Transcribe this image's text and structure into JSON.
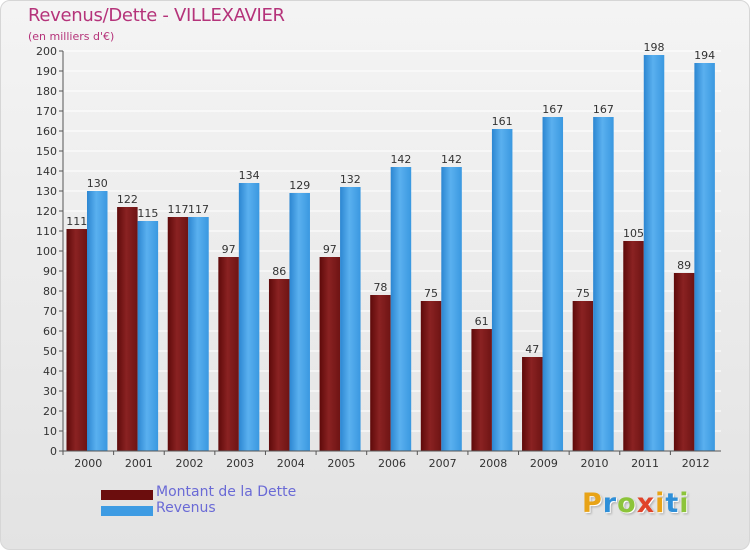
{
  "header": {
    "title": "Revenus/Dette - VILLEXAVIER",
    "subtitle": "(en milliers d'€)"
  },
  "chart_data": {
    "type": "bar",
    "categories": [
      "2000",
      "2001",
      "2002",
      "2003",
      "2004",
      "2005",
      "2006",
      "2007",
      "2008",
      "2009",
      "2010",
      "2011",
      "2012"
    ],
    "series": [
      {
        "name": "Montant de la Dette",
        "color": "#7a1a1a",
        "values": [
          111,
          122,
          117,
          97,
          86,
          97,
          78,
          75,
          61,
          47,
          75,
          105,
          89
        ]
      },
      {
        "name": "Revenus",
        "color": "#3d9be3",
        "values": [
          130,
          115,
          117,
          134,
          129,
          132,
          142,
          142,
          161,
          167,
          167,
          198,
          194
        ]
      }
    ],
    "ylim": [
      0,
      200
    ],
    "yticks": [
      0,
      10,
      20,
      30,
      40,
      50,
      60,
      70,
      80,
      90,
      100,
      110,
      120,
      130,
      140,
      150,
      160,
      170,
      180,
      190,
      200
    ],
    "grid": true,
    "data_labels": true,
    "legend_position": "bottom-left"
  },
  "legend": {
    "items": [
      {
        "label": "Montant de la Dette",
        "color": "#6b0d0d"
      },
      {
        "label": "Revenus",
        "color": "#3d9be3"
      }
    ]
  },
  "logo": {
    "letters": [
      "P",
      "r",
      "o",
      "x",
      "i",
      "t",
      "i"
    ],
    "colors": [
      "#e8a317",
      "#2e8fd8",
      "#8cc43a",
      "#e0442a",
      "#e8a317",
      "#2e8fd8",
      "#8cc43a"
    ]
  }
}
